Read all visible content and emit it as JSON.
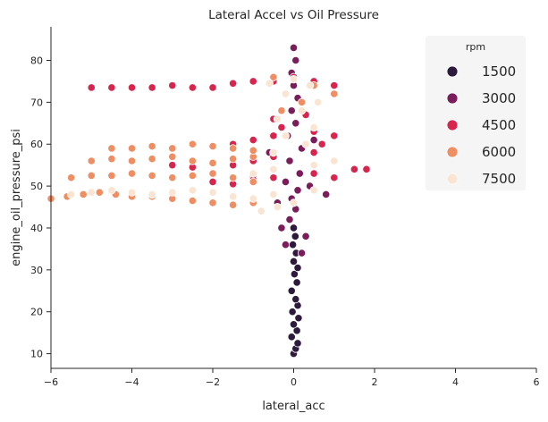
{
  "chart_data": {
    "type": "scatter",
    "title": "Lateral Accel vs Oil Pressure",
    "xlabel": "lateral_acc",
    "ylabel": "engine_oil_pressure_psi",
    "xlim": [
      -6,
      6
    ],
    "ylim": [
      6.5,
      88
    ],
    "xticks": [
      -6,
      -4,
      -2,
      0,
      2,
      4,
      6
    ],
    "yticks": [
      10,
      20,
      30,
      40,
      50,
      60,
      70,
      80
    ],
    "grid": false,
    "hue_variable": "rpm",
    "legend": {
      "title": "rpm",
      "placement": "top-right",
      "entries": [
        {
          "label": "1500",
          "color": "#2d1a3d"
        },
        {
          "label": "3000",
          "color": "#7a1d5a"
        },
        {
          "label": "4500",
          "color": "#d7254e"
        },
        {
          "label": "6000",
          "color": "#f08e63"
        },
        {
          "label": "7500",
          "color": "#fae4d2"
        }
      ]
    },
    "series": [
      {
        "name": "1500",
        "color": "#2d1a3d",
        "points": [
          [
            0.0,
            10.0
          ],
          [
            0.05,
            11.2
          ],
          [
            0.1,
            12.5
          ],
          [
            -0.05,
            14.0
          ],
          [
            0.08,
            15.5
          ],
          [
            0.0,
            17.0
          ],
          [
            0.12,
            18.5
          ],
          [
            -0.03,
            20.0
          ],
          [
            0.1,
            21.5
          ],
          [
            0.05,
            23.0
          ],
          [
            -0.05,
            25.0
          ],
          [
            0.08,
            27.0
          ],
          [
            0.02,
            29.0
          ],
          [
            0.1,
            30.5
          ],
          [
            0.0,
            32.0
          ],
          [
            0.06,
            34.0
          ],
          [
            -0.02,
            36.0
          ],
          [
            0.04,
            38.0
          ],
          [
            0.0,
            40.0
          ]
        ]
      },
      {
        "name": "3000",
        "color": "#7a1d5a",
        "points": [
          [
            -0.1,
            42.0
          ],
          [
            0.05,
            44.5
          ],
          [
            -0.05,
            47.0
          ],
          [
            0.1,
            49.0
          ],
          [
            -0.2,
            51.0
          ],
          [
            0.15,
            53.0
          ],
          [
            -0.1,
            56.0
          ],
          [
            0.2,
            59.0
          ],
          [
            -0.15,
            62.0
          ],
          [
            0.05,
            65.0
          ],
          [
            -0.05,
            68.0
          ],
          [
            0.1,
            71.0
          ],
          [
            0.0,
            74.0
          ],
          [
            -0.05,
            77.0
          ],
          [
            0.05,
            80.0
          ],
          [
            0.0,
            83.0
          ],
          [
            -0.4,
            46.0
          ],
          [
            0.4,
            50.0
          ],
          [
            -0.6,
            58.0
          ],
          [
            0.5,
            61.0
          ],
          [
            -1.0,
            52.0
          ],
          [
            0.8,
            48.0
          ],
          [
            -0.3,
            40.0
          ],
          [
            0.3,
            38.0
          ],
          [
            -0.2,
            36.0
          ],
          [
            0.2,
            34.0
          ]
        ]
      },
      {
        "name": "4500",
        "color": "#d7254e",
        "points": [
          [
            -5.0,
            73.5
          ],
          [
            -4.5,
            73.5
          ],
          [
            -4.0,
            73.5
          ],
          [
            -3.5,
            73.5
          ],
          [
            -3.0,
            74.0
          ],
          [
            -2.5,
            73.5
          ],
          [
            -2.0,
            73.5
          ],
          [
            -1.5,
            74.5
          ],
          [
            -1.0,
            75.0
          ],
          [
            -0.5,
            75.0
          ],
          [
            0.0,
            76.0
          ],
          [
            0.5,
            75.0
          ],
          [
            1.0,
            74.0
          ],
          [
            -3.0,
            55.0
          ],
          [
            -2.5,
            54.5
          ],
          [
            -2.0,
            55.5
          ],
          [
            -1.5,
            55.0
          ],
          [
            -1.0,
            56.0
          ],
          [
            -0.5,
            57.0
          ],
          [
            0.5,
            58.0
          ],
          [
            1.0,
            56.0
          ],
          [
            1.5,
            54.0
          ],
          [
            1.8,
            54.0
          ],
          [
            -2.0,
            51.0
          ],
          [
            -1.5,
            50.5
          ],
          [
            -1.0,
            51.5
          ],
          [
            -0.5,
            52.0
          ],
          [
            0.5,
            53.0
          ],
          [
            1.0,
            52.0
          ],
          [
            -1.5,
            60.0
          ],
          [
            -1.0,
            61.0
          ],
          [
            -0.5,
            62.0
          ],
          [
            0.5,
            63.0
          ],
          [
            1.0,
            62.0
          ],
          [
            -0.5,
            66.0
          ],
          [
            0.3,
            67.0
          ],
          [
            -0.3,
            64.0
          ],
          [
            0.7,
            60.0
          ]
        ]
      },
      {
        "name": "6000",
        "color": "#f08e63",
        "points": [
          [
            -6.0,
            47.0
          ],
          [
            -5.6,
            47.5
          ],
          [
            -5.2,
            48.0
          ],
          [
            -4.8,
            48.5
          ],
          [
            -4.4,
            48.0
          ],
          [
            -4.0,
            47.5
          ],
          [
            -3.5,
            47.5
          ],
          [
            -3.0,
            47.0
          ],
          [
            -2.5,
            46.5
          ],
          [
            -2.0,
            46.0
          ],
          [
            -1.5,
            45.5
          ],
          [
            -1.0,
            46.0
          ],
          [
            -5.5,
            52.0
          ],
          [
            -5.0,
            52.5
          ],
          [
            -4.5,
            52.5
          ],
          [
            -4.0,
            53.0
          ],
          [
            -3.5,
            52.5
          ],
          [
            -3.0,
            52.0
          ],
          [
            -2.5,
            52.5
          ],
          [
            -2.0,
            53.0
          ],
          [
            -1.5,
            52.0
          ],
          [
            -1.0,
            51.0
          ],
          [
            -5.0,
            56.0
          ],
          [
            -4.5,
            56.5
          ],
          [
            -4.0,
            56.0
          ],
          [
            -3.5,
            56.5
          ],
          [
            -3.0,
            57.0
          ],
          [
            -2.5,
            56.0
          ],
          [
            -2.0,
            55.5
          ],
          [
            -1.5,
            56.5
          ],
          [
            -1.0,
            57.0
          ],
          [
            -4.5,
            59.0
          ],
          [
            -4.0,
            59.0
          ],
          [
            -3.5,
            59.5
          ],
          [
            -3.0,
            59.0
          ],
          [
            -2.5,
            60.0
          ],
          [
            -2.0,
            59.5
          ],
          [
            -1.5,
            59.0
          ],
          [
            -1.0,
            58.5
          ],
          [
            -0.5,
            76.0
          ],
          [
            0.5,
            74.0
          ],
          [
            1.0,
            72.0
          ],
          [
            0.2,
            70.0
          ],
          [
            -0.3,
            68.0
          ]
        ]
      },
      {
        "name": "7500",
        "color": "#fae4d2",
        "points": [
          [
            -5.5,
            48.0
          ],
          [
            -5.0,
            48.5
          ],
          [
            -4.5,
            49.0
          ],
          [
            -4.0,
            48.5
          ],
          [
            -3.5,
            48.0
          ],
          [
            -3.0,
            48.5
          ],
          [
            -2.5,
            49.0
          ],
          [
            -2.0,
            48.5
          ],
          [
            -1.5,
            47.5
          ],
          [
            -1.0,
            47.0
          ],
          [
            -0.5,
            48.0
          ],
          [
            0.5,
            49.0
          ],
          [
            -0.8,
            44.0
          ],
          [
            -0.4,
            45.0
          ],
          [
            0.0,
            46.0
          ],
          [
            -1.0,
            53.0
          ],
          [
            -0.5,
            54.0
          ],
          [
            0.5,
            55.0
          ],
          [
            1.0,
            56.0
          ],
          [
            -0.5,
            58.0
          ],
          [
            0.3,
            60.0
          ],
          [
            -0.2,
            62.0
          ],
          [
            0.5,
            64.0
          ],
          [
            -0.4,
            66.0
          ],
          [
            0.2,
            68.0
          ],
          [
            0.6,
            70.0
          ],
          [
            -0.2,
            72.0
          ],
          [
            0.4,
            74.0
          ],
          [
            0.0,
            75.5
          ],
          [
            -0.6,
            74.5
          ]
        ]
      }
    ]
  }
}
